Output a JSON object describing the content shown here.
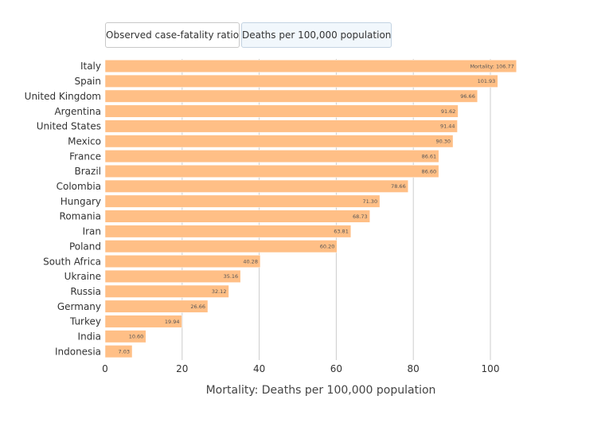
{
  "tabs": [
    {
      "label": "Observed case-fatality ratio",
      "active": false
    },
    {
      "label": "Deaths per 100,000 population",
      "active": true
    }
  ],
  "colors": {
    "bar": "#ffbf86",
    "bar_stroke": "#ffffff",
    "grid": "#cccccc"
  },
  "chart_data": {
    "type": "bar",
    "orientation": "horizontal",
    "categories": [
      "Italy",
      "Spain",
      "United Kingdom",
      "Argentina",
      "United States",
      "Mexico",
      "France",
      "Brazil",
      "Colombia",
      "Hungary",
      "Romania",
      "Iran",
      "Poland",
      "South Africa",
      "Ukraine",
      "Russia",
      "Germany",
      "Turkey",
      "India",
      "Indonesia"
    ],
    "values": [
      106.77,
      101.93,
      96.66,
      91.62,
      91.44,
      90.3,
      86.61,
      86.6,
      78.66,
      71.3,
      68.73,
      63.81,
      60.2,
      40.28,
      35.16,
      32.12,
      26.66,
      19.94,
      10.6,
      7.03
    ],
    "value_labels": [
      "Mortality: 106.77",
      "101.93",
      "96.66",
      "91.62",
      "91.44",
      "90.30",
      "86.61",
      "86.60",
      "78.66",
      "71.30",
      "68.73",
      "63.81",
      "60.20",
      "40.28",
      "35.16",
      "32.12",
      "26.66",
      "19.94",
      "10.60",
      "7.03"
    ],
    "xlabel": "Mortality: Deaths per 100,000 population",
    "ylabel": "",
    "xlim": [
      0,
      110
    ],
    "xticks": [
      0,
      20,
      40,
      60,
      80,
      100
    ],
    "xtick_labels": [
      "0",
      "20",
      "40",
      "60",
      "80",
      "100"
    ],
    "grid": true
  }
}
